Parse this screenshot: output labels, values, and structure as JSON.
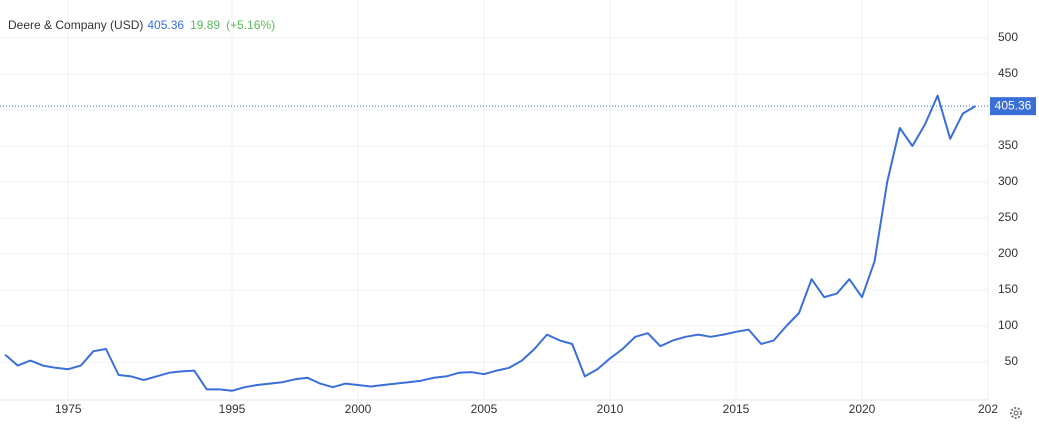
{
  "chart_data": {
    "type": "line",
    "title": "Deere & Company (USD)",
    "change": 19.89,
    "change_percent": "(+5.16%)",
    "categories": [
      null,
      null,
      null,
      null,
      null,
      "1975",
      null,
      null,
      null,
      null,
      null,
      null,
      null,
      null,
      null,
      null,
      null,
      null,
      "1995",
      null,
      null,
      null,
      null,
      null,
      null,
      null,
      null,
      null,
      "2000",
      null,
      null,
      null,
      null,
      null,
      null,
      null,
      null,
      null,
      "2005",
      null,
      null,
      null,
      null,
      null,
      null,
      null,
      null,
      null,
      "2010",
      null,
      null,
      null,
      null,
      null,
      null,
      null,
      null,
      null,
      "2015",
      null,
      null,
      null,
      null,
      null,
      null,
      null,
      null,
      null,
      "2020",
      null,
      null,
      null,
      null,
      null,
      null,
      null,
      null,
      null,
      "202"
    ],
    "series": [
      {
        "name": "Deere & Company",
        "color": "#3a6fd8",
        "values": [
          60,
          45,
          52,
          45,
          42,
          40,
          45,
          65,
          68,
          32,
          30,
          25,
          30,
          35,
          37,
          38,
          12,
          12,
          10,
          15,
          18,
          20,
          22,
          26,
          28,
          20,
          15,
          20,
          18,
          16,
          18,
          20,
          22,
          24,
          28,
          30,
          35,
          36,
          33,
          38,
          42,
          52,
          68,
          88,
          80,
          75,
          30,
          40,
          55,
          68,
          85,
          90,
          72,
          80,
          85,
          88,
          85,
          88,
          92,
          95,
          75,
          80,
          100,
          118,
          165,
          140,
          145,
          165,
          140,
          190,
          300,
          375,
          350,
          380,
          420,
          360,
          395,
          405.36,
          null
        ]
      }
    ],
    "ylim": [
      0,
      550
    ],
    "yticks": [
      50,
      100,
      150,
      200,
      250,
      300,
      350,
      400,
      450,
      500
    ],
    "grid": true
  }
}
